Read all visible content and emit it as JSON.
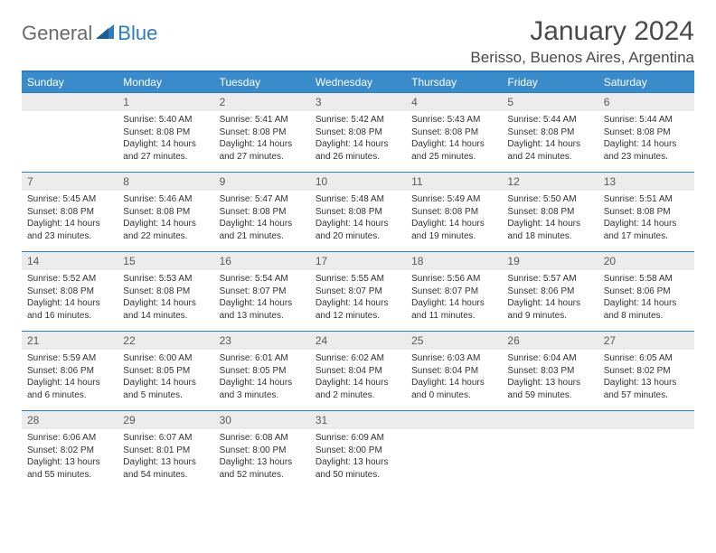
{
  "brand": {
    "word1": "General",
    "word2": "Blue"
  },
  "title": "January 2024",
  "location": "Berisso, Buenos Aires, Argentina",
  "colors": {
    "header_bg": "#3a8bc9",
    "accent": "#2f7bbf",
    "day_bg": "#ececec",
    "text": "#333333",
    "muted": "#6a6a6a"
  },
  "day_headers": [
    "Sunday",
    "Monday",
    "Tuesday",
    "Wednesday",
    "Thursday",
    "Friday",
    "Saturday"
  ],
  "weeks": [
    {
      "nums": [
        "",
        "1",
        "2",
        "3",
        "4",
        "5",
        "6"
      ],
      "cells": [
        null,
        {
          "sr": "Sunrise: 5:40 AM",
          "ss": "Sunset: 8:08 PM",
          "dl": "Daylight: 14 hours and 27 minutes."
        },
        {
          "sr": "Sunrise: 5:41 AM",
          "ss": "Sunset: 8:08 PM",
          "dl": "Daylight: 14 hours and 27 minutes."
        },
        {
          "sr": "Sunrise: 5:42 AM",
          "ss": "Sunset: 8:08 PM",
          "dl": "Daylight: 14 hours and 26 minutes."
        },
        {
          "sr": "Sunrise: 5:43 AM",
          "ss": "Sunset: 8:08 PM",
          "dl": "Daylight: 14 hours and 25 minutes."
        },
        {
          "sr": "Sunrise: 5:44 AM",
          "ss": "Sunset: 8:08 PM",
          "dl": "Daylight: 14 hours and 24 minutes."
        },
        {
          "sr": "Sunrise: 5:44 AM",
          "ss": "Sunset: 8:08 PM",
          "dl": "Daylight: 14 hours and 23 minutes."
        }
      ]
    },
    {
      "nums": [
        "7",
        "8",
        "9",
        "10",
        "11",
        "12",
        "13"
      ],
      "cells": [
        {
          "sr": "Sunrise: 5:45 AM",
          "ss": "Sunset: 8:08 PM",
          "dl": "Daylight: 14 hours and 23 minutes."
        },
        {
          "sr": "Sunrise: 5:46 AM",
          "ss": "Sunset: 8:08 PM",
          "dl": "Daylight: 14 hours and 22 minutes."
        },
        {
          "sr": "Sunrise: 5:47 AM",
          "ss": "Sunset: 8:08 PM",
          "dl": "Daylight: 14 hours and 21 minutes."
        },
        {
          "sr": "Sunrise: 5:48 AM",
          "ss": "Sunset: 8:08 PM",
          "dl": "Daylight: 14 hours and 20 minutes."
        },
        {
          "sr": "Sunrise: 5:49 AM",
          "ss": "Sunset: 8:08 PM",
          "dl": "Daylight: 14 hours and 19 minutes."
        },
        {
          "sr": "Sunrise: 5:50 AM",
          "ss": "Sunset: 8:08 PM",
          "dl": "Daylight: 14 hours and 18 minutes."
        },
        {
          "sr": "Sunrise: 5:51 AM",
          "ss": "Sunset: 8:08 PM",
          "dl": "Daylight: 14 hours and 17 minutes."
        }
      ]
    },
    {
      "nums": [
        "14",
        "15",
        "16",
        "17",
        "18",
        "19",
        "20"
      ],
      "cells": [
        {
          "sr": "Sunrise: 5:52 AM",
          "ss": "Sunset: 8:08 PM",
          "dl": "Daylight: 14 hours and 16 minutes."
        },
        {
          "sr": "Sunrise: 5:53 AM",
          "ss": "Sunset: 8:08 PM",
          "dl": "Daylight: 14 hours and 14 minutes."
        },
        {
          "sr": "Sunrise: 5:54 AM",
          "ss": "Sunset: 8:07 PM",
          "dl": "Daylight: 14 hours and 13 minutes."
        },
        {
          "sr": "Sunrise: 5:55 AM",
          "ss": "Sunset: 8:07 PM",
          "dl": "Daylight: 14 hours and 12 minutes."
        },
        {
          "sr": "Sunrise: 5:56 AM",
          "ss": "Sunset: 8:07 PM",
          "dl": "Daylight: 14 hours and 11 minutes."
        },
        {
          "sr": "Sunrise: 5:57 AM",
          "ss": "Sunset: 8:06 PM",
          "dl": "Daylight: 14 hours and 9 minutes."
        },
        {
          "sr": "Sunrise: 5:58 AM",
          "ss": "Sunset: 8:06 PM",
          "dl": "Daylight: 14 hours and 8 minutes."
        }
      ]
    },
    {
      "nums": [
        "21",
        "22",
        "23",
        "24",
        "25",
        "26",
        "27"
      ],
      "cells": [
        {
          "sr": "Sunrise: 5:59 AM",
          "ss": "Sunset: 8:06 PM",
          "dl": "Daylight: 14 hours and 6 minutes."
        },
        {
          "sr": "Sunrise: 6:00 AM",
          "ss": "Sunset: 8:05 PM",
          "dl": "Daylight: 14 hours and 5 minutes."
        },
        {
          "sr": "Sunrise: 6:01 AM",
          "ss": "Sunset: 8:05 PM",
          "dl": "Daylight: 14 hours and 3 minutes."
        },
        {
          "sr": "Sunrise: 6:02 AM",
          "ss": "Sunset: 8:04 PM",
          "dl": "Daylight: 14 hours and 2 minutes."
        },
        {
          "sr": "Sunrise: 6:03 AM",
          "ss": "Sunset: 8:04 PM",
          "dl": "Daylight: 14 hours and 0 minutes."
        },
        {
          "sr": "Sunrise: 6:04 AM",
          "ss": "Sunset: 8:03 PM",
          "dl": "Daylight: 13 hours and 59 minutes."
        },
        {
          "sr": "Sunrise: 6:05 AM",
          "ss": "Sunset: 8:02 PM",
          "dl": "Daylight: 13 hours and 57 minutes."
        }
      ]
    },
    {
      "nums": [
        "28",
        "29",
        "30",
        "31",
        "",
        "",
        ""
      ],
      "cells": [
        {
          "sr": "Sunrise: 6:06 AM",
          "ss": "Sunset: 8:02 PM",
          "dl": "Daylight: 13 hours and 55 minutes."
        },
        {
          "sr": "Sunrise: 6:07 AM",
          "ss": "Sunset: 8:01 PM",
          "dl": "Daylight: 13 hours and 54 minutes."
        },
        {
          "sr": "Sunrise: 6:08 AM",
          "ss": "Sunset: 8:00 PM",
          "dl": "Daylight: 13 hours and 52 minutes."
        },
        {
          "sr": "Sunrise: 6:09 AM",
          "ss": "Sunset: 8:00 PM",
          "dl": "Daylight: 13 hours and 50 minutes."
        },
        null,
        null,
        null
      ]
    }
  ]
}
